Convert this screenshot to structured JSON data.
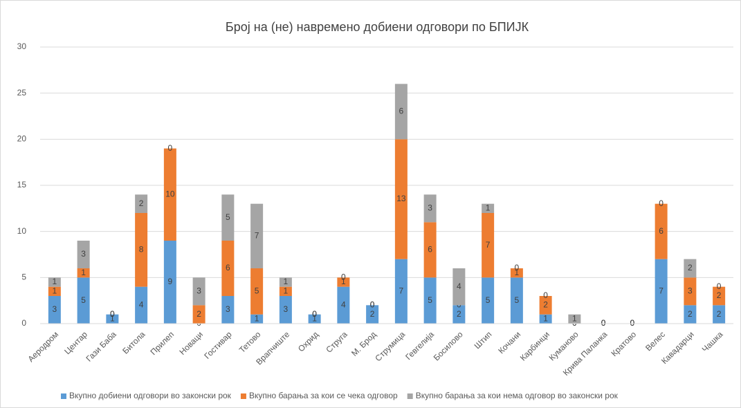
{
  "chart_data": {
    "type": "stacked_bar",
    "title": "Број на (не) навремено добиени одговори по БПИЈК",
    "categories": [
      "Аеродром",
      "Центар",
      "Гази Баба",
      "Битола",
      "Прилеп",
      "Новаци",
      "Гостивар",
      "Тетово",
      "Врапчиште",
      "Охрид",
      "Струга",
      "М. Брод",
      "Струмица",
      "Гевгелија",
      "Босилово",
      "Штип",
      "Кочани",
      "Карбинци",
      "Куманово",
      "Крива Паланка",
      "Кратово",
      "Велес",
      "Кавадарци",
      "Чашка"
    ],
    "series": [
      {
        "name": "Вкупно добиени одговори во законски рок",
        "color": "#5b9bd5",
        "values": [
          3,
          5,
          1,
          4,
          9,
          0,
          3,
          1,
          3,
          1,
          4,
          2,
          7,
          5,
          2,
          5,
          5,
          1,
          0,
          0,
          0,
          7,
          2,
          2
        ]
      },
      {
        "name": "Вкупно барања за кои се чека одговор",
        "color": "#ed7d31",
        "values": [
          1,
          1,
          0,
          8,
          10,
          2,
          6,
          5,
          1,
          0,
          1,
          0,
          13,
          6,
          0,
          7,
          1,
          2,
          0,
          0,
          0,
          6,
          3,
          2
        ]
      },
      {
        "name": "Вкупно барања за кои нема одговор во законски рок",
        "color": "#a5a5a5",
        "values": [
          1,
          3,
          0,
          2,
          0,
          3,
          5,
          7,
          1,
          0,
          0,
          0,
          6,
          3,
          4,
          1,
          0,
          0,
          1,
          0,
          0,
          0,
          2,
          0
        ]
      }
    ],
    "ylim": [
      0,
      30
    ],
    "yticks": [
      0,
      5,
      10,
      15,
      20,
      25,
      30
    ],
    "grid": true,
    "legend": "bottom"
  }
}
